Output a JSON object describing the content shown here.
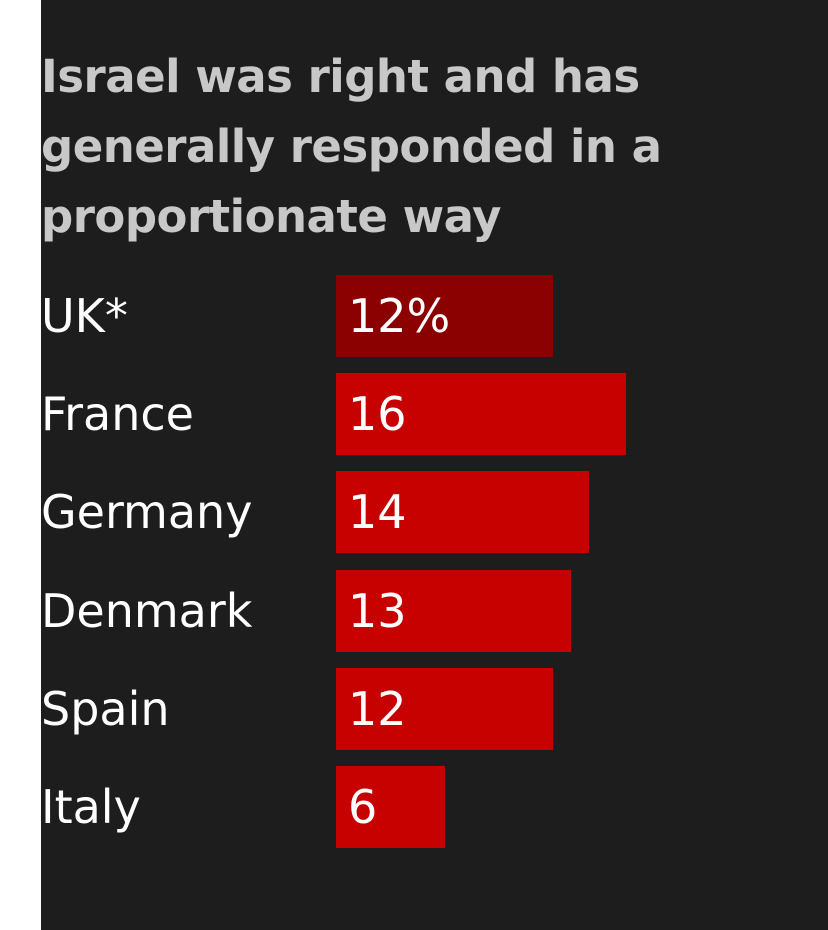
{
  "chart_data": {
    "type": "bar",
    "orientation": "horizontal",
    "title": "Israel was right and has generally responded in a proportionate way",
    "categories": [
      "UK*",
      "France",
      "Germany",
      "Denmark",
      "Spain",
      "Italy"
    ],
    "values": [
      12,
      16,
      14,
      13,
      12,
      6
    ],
    "value_labels": [
      "12%",
      "16",
      "14",
      "13",
      "12",
      "6"
    ],
    "unit": "%",
    "colors": {
      "background": "#1d1d1d",
      "title": "#c8c8c8",
      "text": "#ffffff",
      "highlight_bar": "#8b0000",
      "bar": "#c70000"
    },
    "highlight_index": 0,
    "grid": false,
    "legend": "none"
  }
}
